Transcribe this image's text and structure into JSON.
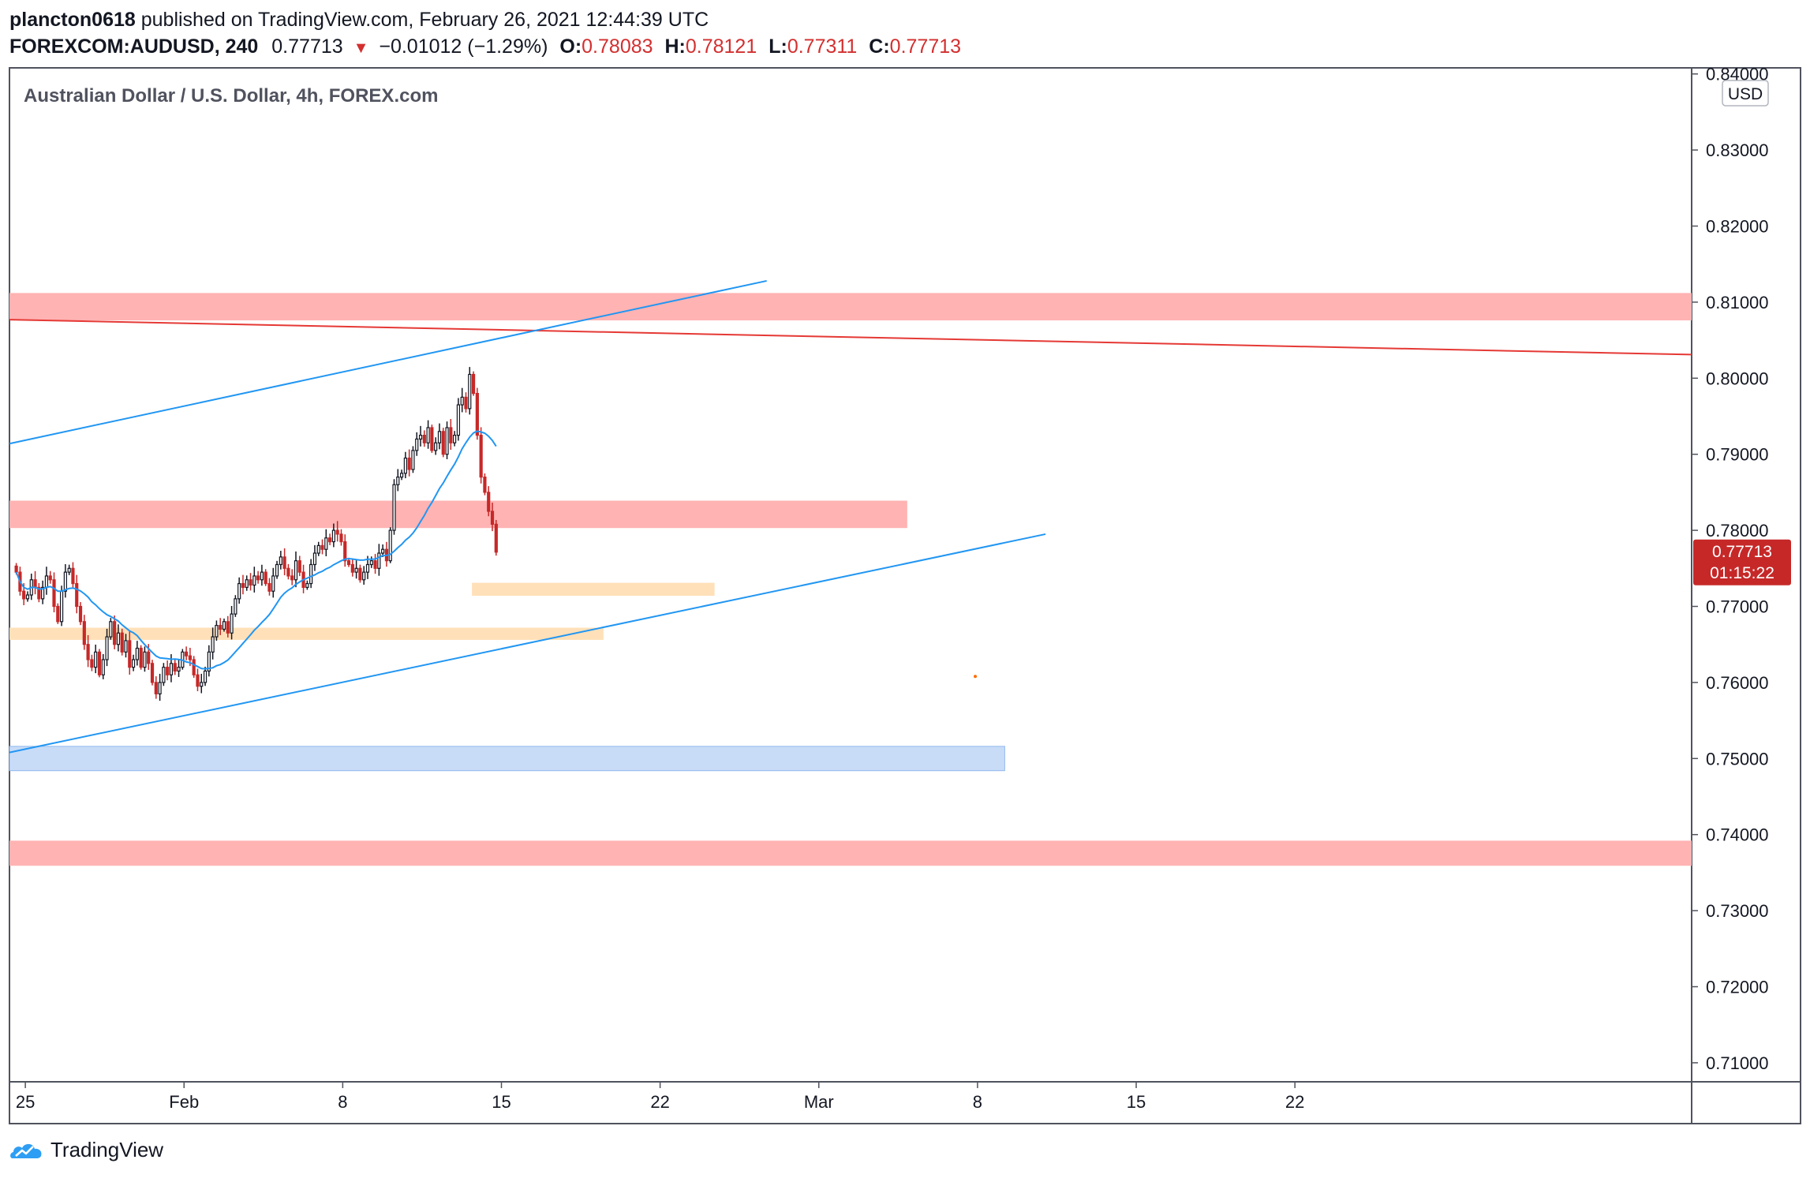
{
  "header": {
    "author": "plancton0618",
    "published_text": "published on TradingView.com, February 26, 2021 12:44:39 UTC",
    "symbol": "FOREXCOM:AUDUSD, 240",
    "price": "0.77713",
    "change": "−0.01012 (−1.29%)",
    "open_label": "O:",
    "open": "0.78083",
    "high_label": "H:",
    "high": "0.78121",
    "low_label": "L:",
    "low": "0.77311",
    "close_label": "C:",
    "close": "0.77713"
  },
  "chart_title": "Australian Dollar / U.S. Dollar, 4h, FOREX.com",
  "currency_badge": "USD",
  "price_tag": {
    "price": "0.77713",
    "countdown": "01:15:22"
  },
  "footer": {
    "brand": "TradingView",
    "icon": "tradingview-logo-icon"
  },
  "colors": {
    "up": "#26a69a",
    "down": "#c62828",
    "candle_body_up": "#ffffff",
    "candle_stroke": "#131722",
    "ma_line": "#2196f3",
    "resistance_zone": "#ffb3b3",
    "support_zone": "#ffe0b8",
    "demand_zone": "#c8dcf7",
    "trend_line": "#2196f3",
    "red_line": "#e53935",
    "price_tag_bg": "#c62828"
  },
  "chart_data": {
    "type": "candlestick",
    "timeframe": "4h",
    "ylim": [
      0.7075,
      0.8408
    ],
    "y_ticks": [
      "0.84000",
      "0.83000",
      "0.82000",
      "0.81000",
      "0.80000",
      "0.79000",
      "0.78000",
      "0.77000",
      "0.76000",
      "0.75000",
      "0.74000",
      "0.73000",
      "0.72000",
      "0.71000"
    ],
    "x_range_days": [
      -6.7,
      67.5
    ],
    "x_ticks": [
      {
        "label": "25",
        "day": -6
      },
      {
        "label": "Feb",
        "day": 1
      },
      {
        "label": "8",
        "day": 8
      },
      {
        "label": "15",
        "day": 15
      },
      {
        "label": "22",
        "day": 22
      },
      {
        "label": "Mar",
        "day": 29
      },
      {
        "label": "8",
        "day": 36
      },
      {
        "label": "15",
        "day": 43
      },
      {
        "label": "22",
        "day": 50
      }
    ],
    "closes": [
      0.7745,
      0.772,
      0.771,
      0.7715,
      0.7735,
      0.7725,
      0.771,
      0.7725,
      0.774,
      0.7735,
      0.77,
      0.768,
      0.772,
      0.7745,
      0.775,
      0.773,
      0.77,
      0.768,
      0.765,
      0.763,
      0.762,
      0.764,
      0.761,
      0.763,
      0.766,
      0.768,
      0.765,
      0.7665,
      0.764,
      0.7655,
      0.762,
      0.763,
      0.7645,
      0.762,
      0.764,
      0.7625,
      0.76,
      0.7585,
      0.76,
      0.762,
      0.761,
      0.7625,
      0.7615,
      0.762,
      0.764,
      0.7635,
      0.763,
      0.761,
      0.7595,
      0.76,
      0.7615,
      0.764,
      0.766,
      0.7675,
      0.767,
      0.768,
      0.7665,
      0.769,
      0.771,
      0.773,
      0.7725,
      0.7735,
      0.7728,
      0.774,
      0.7735,
      0.7745,
      0.773,
      0.772,
      0.774,
      0.7755,
      0.7765,
      0.775,
      0.774,
      0.7735,
      0.776,
      0.7745,
      0.7725,
      0.773,
      0.7755,
      0.777,
      0.778,
      0.7775,
      0.779,
      0.7785,
      0.78,
      0.7795,
      0.7785,
      0.776,
      0.7755,
      0.7745,
      0.775,
      0.7735,
      0.7745,
      0.7755,
      0.776,
      0.775,
      0.777,
      0.7775,
      0.776,
      0.78,
      0.786,
      0.787,
      0.7875,
      0.7895,
      0.788,
      0.7905,
      0.792,
      0.7925,
      0.7915,
      0.7935,
      0.7905,
      0.7915,
      0.793,
      0.79,
      0.7935,
      0.7915,
      0.7925,
      0.7965,
      0.7975,
      0.796,
      0.8005,
      0.798,
      0.7925,
      0.787,
      0.785,
      0.7825,
      0.7808,
      0.77713
    ],
    "series": [
      {
        "name": "",
        "type": "sma",
        "period": 20
      }
    ],
    "zones": [
      {
        "kind": "resistance",
        "from": 0.8076,
        "to": 0.8112,
        "x_start_day": -6.7,
        "x_end_day": 67.5
      },
      {
        "kind": "resistance",
        "from": 0.7803,
        "to": 0.7839,
        "x_start_day": -6.7,
        "x_end_day": 32.9
      },
      {
        "kind": "support",
        "from": 0.7714,
        "to": 0.7731,
        "x_start_day": 13.7,
        "x_end_day": 24.4
      },
      {
        "kind": "support",
        "from": 0.7656,
        "to": 0.7672,
        "x_start_day": -6.7,
        "x_end_day": 19.5
      },
      {
        "kind": "demand",
        "from": 0.7484,
        "to": 0.7516,
        "x_start_day": -6.7,
        "x_end_day": 37.2
      },
      {
        "kind": "resistance",
        "from": 0.7359,
        "to": 0.7392,
        "x_start_day": -6.7,
        "x_end_day": 67.5
      }
    ],
    "lines": [
      {
        "kind": "red",
        "p1": {
          "day": -6.7,
          "price": 0.8077
        },
        "p2": {
          "day": 67.5,
          "price": 0.8031
        }
      },
      {
        "kind": "blue",
        "p1": {
          "day": -6.7,
          "price": 0.7914
        },
        "p2": {
          "day": 26.7,
          "price": 0.8128
        }
      },
      {
        "kind": "blue",
        "p1": {
          "day": -6.7,
          "price": 0.7508
        },
        "p2": {
          "day": 39.0,
          "price": 0.7795
        }
      }
    ],
    "marker": {
      "day": 35.9,
      "price": 0.7608
    }
  }
}
